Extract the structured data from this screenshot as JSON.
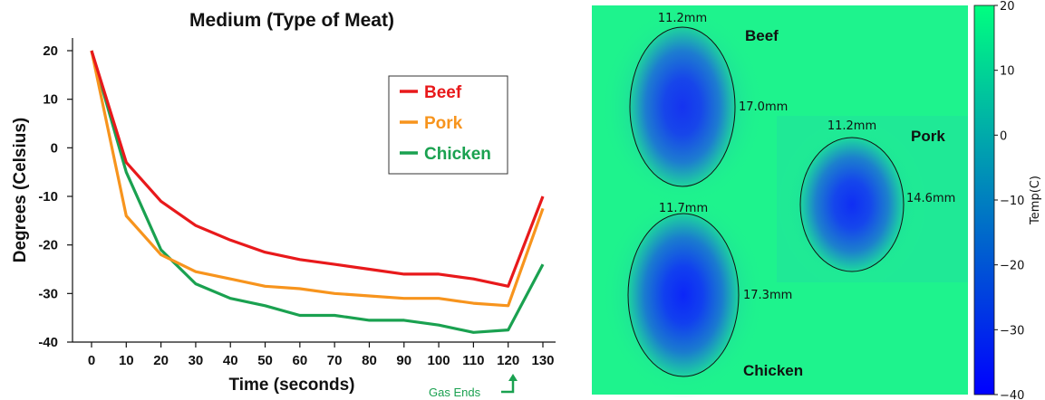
{
  "chart_data": [
    {
      "type": "line",
      "title": "Medium (Type of Meat)",
      "xlabel": "Time (seconds)",
      "ylabel": "Degrees (Celsius)",
      "x": [
        0,
        10,
        20,
        30,
        40,
        50,
        60,
        70,
        80,
        90,
        100,
        110,
        120,
        130
      ],
      "xlim": [
        0,
        130
      ],
      "ylim": [
        -40,
        20
      ],
      "yticks": [
        20,
        10,
        0,
        -10,
        -20,
        -30,
        -40
      ],
      "legend_position": "top-right",
      "series": [
        {
          "name": "Beef",
          "color": "#e8191b",
          "values": [
            20,
            -3,
            -11,
            -16,
            -19,
            -21.5,
            -23,
            -24,
            -25,
            -26,
            -26,
            -27,
            -28.5,
            -10
          ]
        },
        {
          "name": "Pork",
          "color": "#f7941d",
          "values": [
            20,
            -14,
            -22,
            -25.5,
            -27,
            -28.5,
            -29,
            -30,
            -30.5,
            -31,
            -31,
            -32,
            -32.5,
            -12.5
          ]
        },
        {
          "name": "Chicken",
          "color": "#1aa150",
          "values": [
            20,
            -5,
            -21,
            -28,
            -31,
            -32.5,
            -34.5,
            -34.5,
            -35.5,
            -35.5,
            -36.5,
            -38,
            -37.5,
            -24
          ]
        }
      ],
      "annotation": {
        "text": "Gas Ends",
        "x": 120,
        "color": "#1aa150"
      }
    },
    {
      "type": "heatmap",
      "colorbar_label": "Temp(C)",
      "colorbar_range": [
        -40,
        20
      ],
      "colorbar_ticks": [
        20,
        10,
        0,
        -10,
        -20,
        -30,
        -40
      ],
      "colormap": [
        "#0000ff",
        "#00ff80"
      ],
      "regions": [
        {
          "name": "Beef",
          "width_label": "11.2mm",
          "height_label": "17.0mm",
          "min_temp": -30
        },
        {
          "name": "Pork",
          "width_label": "11.2mm",
          "height_label": "14.6mm",
          "min_temp": -33
        },
        {
          "name": "Chicken",
          "width_label": "11.7mm",
          "height_label": "17.3mm",
          "min_temp": -37
        }
      ]
    }
  ]
}
